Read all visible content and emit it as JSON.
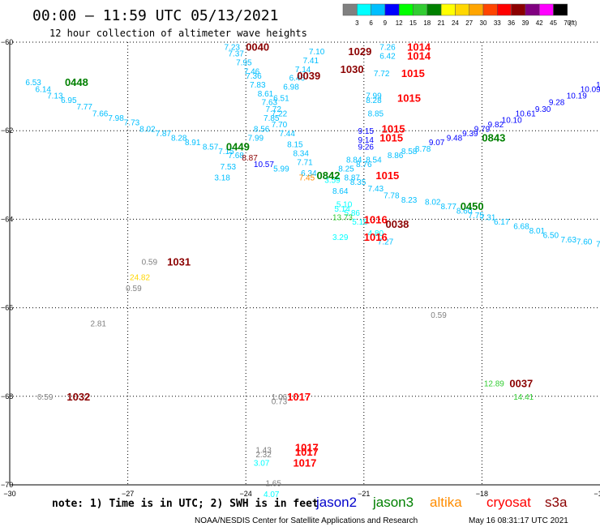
{
  "header": {
    "title": "00:00 – 11:59 UTC 05/13/2021",
    "subtitle": "12 hour collection of altimeter wave heights"
  },
  "colorbar": {
    "labels": [
      "3",
      "6",
      "9",
      "12",
      "15",
      "18",
      "21",
      "24",
      "27",
      "30",
      "33",
      "36",
      "39",
      "42",
      "45",
      "70",
      "(ft)"
    ],
    "colors": [
      "#808080",
      "#00ffff",
      "#00bfff",
      "#0000ff",
      "#00ff00",
      "#32cd32",
      "#008000",
      "#ffff00",
      "#ffd700",
      "#ffa500",
      "#ff4500",
      "#ff0000",
      "#8b0000",
      "#800080",
      "#ff00ff",
      "#000000"
    ]
  },
  "footer": {
    "note": "note: 1) Time is in UTC; 2) SWH is in feet",
    "credit": "NOAA/NESDIS Center for Satellite Applications and Research",
    "timestamp": "May 16 08:31:17 UTC 2021"
  },
  "legend": [
    {
      "name": "jason2",
      "color": "#0000cc"
    },
    {
      "name": "jason3",
      "color": "#008000"
    },
    {
      "name": "altika",
      "color": "#ff8c00"
    },
    {
      "name": "cryosat",
      "color": "#ff0000"
    },
    {
      "name": "s3a",
      "color": "#8b0000"
    }
  ],
  "chart_data": {
    "type": "scatter",
    "xlim": [
      -30,
      -15
    ],
    "ylim": [
      -70,
      -60
    ],
    "x_ticks": [
      -30,
      -27,
      -24,
      -21,
      -18,
      -15
    ],
    "y_ticks": [
      -60,
      -62,
      -64,
      -66,
      -68,
      -70
    ],
    "grid": true,
    "time_labels": [
      {
        "text": "0448",
        "lon": -28.6,
        "lat": -60.9,
        "color": "#008000"
      },
      {
        "text": "0449",
        "lon": -24.5,
        "lat": -62.35,
        "color": "#008000"
      },
      {
        "text": "0040",
        "lon": -24.0,
        "lat": -60.1,
        "color": "#8b0000"
      },
      {
        "text": "0039",
        "lon": -22.7,
        "lat": -60.75,
        "color": "#8b0000"
      },
      {
        "text": "1029",
        "lon": -21.4,
        "lat": -60.2,
        "color": "#8b0000"
      },
      {
        "text": "1030",
        "lon": -21.6,
        "lat": -60.6,
        "color": "#8b0000"
      },
      {
        "text": "1014",
        "lon": -19.9,
        "lat": -60.1,
        "color": "#ff0000"
      },
      {
        "text": "1014",
        "lon": -19.9,
        "lat": -60.3,
        "color": "#ff0000"
      },
      {
        "text": "1015",
        "lon": -20.05,
        "lat": -60.7,
        "color": "#ff0000"
      },
      {
        "text": "1015",
        "lon": -20.15,
        "lat": -61.25,
        "color": "#ff0000"
      },
      {
        "text": "1015",
        "lon": -20.55,
        "lat": -61.95,
        "color": "#ff0000"
      },
      {
        "text": "1015",
        "lon": -20.6,
        "lat": -62.15,
        "color": "#ff0000"
      },
      {
        "text": "0843",
        "lon": -18.0,
        "lat": -62.15,
        "color": "#008000"
      },
      {
        "text": "0842",
        "lon": -22.2,
        "lat": -63.0,
        "color": "#008000"
      },
      {
        "text": "1015",
        "lon": -20.7,
        "lat": -63.0,
        "color": "#ff0000"
      },
      {
        "text": "0450",
        "lon": -18.55,
        "lat": -63.7,
        "color": "#008000"
      },
      {
        "text": "1016",
        "lon": -21.0,
        "lat": -64.0,
        "color": "#ff0000"
      },
      {
        "text": "0038",
        "lon": -20.45,
        "lat": -64.1,
        "color": "#8b0000"
      },
      {
        "text": "1016",
        "lon": -21.0,
        "lat": -64.4,
        "color": "#ff0000"
      },
      {
        "text": "1031",
        "lon": -26.0,
        "lat": -64.95,
        "color": "#8b0000"
      },
      {
        "text": "1032",
        "lon": -28.55,
        "lat": -68.0,
        "color": "#8b0000"
      },
      {
        "text": "0037",
        "lon": -17.3,
        "lat": -67.7,
        "color": "#8b0000"
      },
      {
        "text": "1017",
        "lon": -22.95,
        "lat": -68.0,
        "color": "#ff0000"
      },
      {
        "text": "1017",
        "lon": -22.75,
        "lat": -69.15,
        "color": "#ff0000"
      },
      {
        "text": "1017",
        "lon": -22.75,
        "lat": -69.25,
        "color": "#ff0000"
      },
      {
        "text": "1017",
        "lon": -22.8,
        "lat": -69.5,
        "color": "#ff0000"
      }
    ],
    "swh_values": [
      {
        "text": "6.53",
        "lon": -29.6,
        "lat": -60.9,
        "color": "#00bfff"
      },
      {
        "text": "6.14",
        "lon": -29.35,
        "lat": -61.05,
        "color": "#00bfff"
      },
      {
        "text": "7.13",
        "lon": -29.05,
        "lat": -61.2,
        "color": "#00bfff"
      },
      {
        "text": "6.95",
        "lon": -28.7,
        "lat": -61.3,
        "color": "#00bfff"
      },
      {
        "text": "7.77",
        "lon": -28.3,
        "lat": -61.45,
        "color": "#00bfff"
      },
      {
        "text": "7.66",
        "lon": -27.9,
        "lat": -61.6,
        "color": "#00bfff"
      },
      {
        "text": "7.98",
        "lon": -27.5,
        "lat": -61.7,
        "color": "#00bfff"
      },
      {
        "text": "7.73",
        "lon": -27.1,
        "lat": -61.8,
        "color": "#00bfff"
      },
      {
        "text": "8.02",
        "lon": -26.7,
        "lat": -61.95,
        "color": "#00bfff"
      },
      {
        "text": "7.87",
        "lon": -26.3,
        "lat": -62.05,
        "color": "#00bfff"
      },
      {
        "text": "8.28",
        "lon": -25.9,
        "lat": -62.15,
        "color": "#00bfff"
      },
      {
        "text": "8.91",
        "lon": -25.55,
        "lat": -62.25,
        "color": "#00bfff"
      },
      {
        "text": "8.57",
        "lon": -25.1,
        "lat": -62.35,
        "color": "#00bfff"
      },
      {
        "text": "7.15",
        "lon": -24.7,
        "lat": -62.45,
        "color": "#00bfff"
      },
      {
        "text": "7.68",
        "lon": -24.45,
        "lat": -62.55,
        "color": "#00bfff"
      },
      {
        "text": "7.53",
        "lon": -24.65,
        "lat": -62.8,
        "color": "#00bfff"
      },
      {
        "text": "3.18",
        "lon": -24.8,
        "lat": -63.05,
        "color": "#00bfff"
      },
      {
        "text": "7.23",
        "lon": -24.55,
        "lat": -60.1,
        "color": "#00bfff"
      },
      {
        "text": "7.37",
        "lon": -24.45,
        "lat": -60.25,
        "color": "#00bfff"
      },
      {
        "text": "7.95",
        "lon": -24.25,
        "lat": -60.45,
        "color": "#00bfff"
      },
      {
        "text": "7.46",
        "lon": -24.05,
        "lat": -60.65,
        "color": "#00bfff"
      },
      {
        "text": "7.36",
        "lon": -24.0,
        "lat": -60.75,
        "color": "#00bfff"
      },
      {
        "text": "7.83",
        "lon": -23.9,
        "lat": -60.95,
        "color": "#00bfff"
      },
      {
        "text": "8.61",
        "lon": -23.7,
        "lat": -61.15,
        "color": "#00bfff"
      },
      {
        "text": "7.63",
        "lon": -23.6,
        "lat": -61.35,
        "color": "#00bfff"
      },
      {
        "text": "7.72",
        "lon": -23.5,
        "lat": -61.5,
        "color": "#00bfff"
      },
      {
        "text": "7.85",
        "lon": -23.55,
        "lat": -61.7,
        "color": "#00bfff"
      },
      {
        "text": "8.56",
        "lon": -23.8,
        "lat": -61.95,
        "color": "#00bfff"
      },
      {
        "text": "7.99",
        "lon": -23.95,
        "lat": -62.15,
        "color": "#00bfff"
      },
      {
        "text": "7.10",
        "lon": -22.4,
        "lat": -60.2,
        "color": "#00bfff"
      },
      {
        "text": "7.41",
        "lon": -22.55,
        "lat": -60.4,
        "color": "#00bfff"
      },
      {
        "text": "7.14",
        "lon": -22.75,
        "lat": -60.6,
        "color": "#00bfff"
      },
      {
        "text": "6.46",
        "lon": -22.9,
        "lat": -60.8,
        "color": "#00bfff"
      },
      {
        "text": "6.98",
        "lon": -23.05,
        "lat": -61.0,
        "color": "#00bfff"
      },
      {
        "text": "6.51",
        "lon": -23.3,
        "lat": -61.25,
        "color": "#00bfff"
      },
      {
        "text": "7.22",
        "lon": -23.35,
        "lat": -61.6,
        "color": "#00bfff"
      },
      {
        "text": "7.70",
        "lon": -23.35,
        "lat": -61.85,
        "color": "#00bfff"
      },
      {
        "text": "7.44",
        "lon": -23.15,
        "lat": -62.05,
        "color": "#00bfff"
      },
      {
        "text": "8.15",
        "lon": -22.95,
        "lat": -62.3,
        "color": "#00bfff"
      },
      {
        "text": "8.34",
        "lon": -22.8,
        "lat": -62.5,
        "color": "#00bfff"
      },
      {
        "text": "7.71",
        "lon": -22.7,
        "lat": -62.7,
        "color": "#00bfff"
      },
      {
        "text": "5.99",
        "lon": -23.3,
        "lat": -62.85,
        "color": "#00bfff"
      },
      {
        "text": "6.34",
        "lon": -22.6,
        "lat": -62.95,
        "color": "#00bfff"
      },
      {
        "text": "7.26",
        "lon": -20.6,
        "lat": -60.1,
        "color": "#00bfff"
      },
      {
        "text": "6.42",
        "lon": -20.6,
        "lat": -60.3,
        "color": "#00bfff"
      },
      {
        "text": "7.72",
        "lon": -20.75,
        "lat": -60.7,
        "color": "#00bfff"
      },
      {
        "text": "7.99",
        "lon": -20.95,
        "lat": -61.2,
        "color": "#00bfff"
      },
      {
        "text": "8.28",
        "lon": -20.95,
        "lat": -61.3,
        "color": "#00bfff"
      },
      {
        "text": "8.85",
        "lon": -20.9,
        "lat": -61.6,
        "color": "#00bfff"
      },
      {
        "text": "8.86",
        "lon": -20.4,
        "lat": -62.55,
        "color": "#00bfff"
      },
      {
        "text": "8.58",
        "lon": -20.05,
        "lat": -62.45,
        "color": "#00bfff"
      },
      {
        "text": "8.78",
        "lon": -19.7,
        "lat": -62.4,
        "color": "#00bfff"
      },
      {
        "text": "8.54",
        "lon": -20.95,
        "lat": -62.65,
        "color": "#00bfff"
      },
      {
        "text": "8.84",
        "lon": -21.45,
        "lat": -62.65,
        "color": "#00bfff"
      },
      {
        "text": "8.76",
        "lon": -21.2,
        "lat": -62.75,
        "color": "#00bfff"
      },
      {
        "text": "8.25",
        "lon": -21.65,
        "lat": -62.85,
        "color": "#00bfff"
      },
      {
        "text": "8.87",
        "lon": -21.5,
        "lat": -63.05,
        "color": "#00bfff"
      },
      {
        "text": "8.35",
        "lon": -21.35,
        "lat": -63.15,
        "color": "#00bfff"
      },
      {
        "text": "8.64",
        "lon": -21.8,
        "lat": -63.35,
        "color": "#00bfff"
      },
      {
        "text": "7.43",
        "lon": -20.9,
        "lat": -63.3,
        "color": "#00bfff"
      },
      {
        "text": "7.78",
        "lon": -20.5,
        "lat": -63.45,
        "color": "#00bfff"
      },
      {
        "text": "8.23",
        "lon": -20.05,
        "lat": -63.55,
        "color": "#00bfff"
      },
      {
        "text": "8.02",
        "lon": -19.45,
        "lat": -63.6,
        "color": "#00bfff"
      },
      {
        "text": "8.77",
        "lon": -19.05,
        "lat": -63.7,
        "color": "#00bfff"
      },
      {
        "text": "8.60",
        "lon": -18.65,
        "lat": -63.8,
        "color": "#00bfff"
      },
      {
        "text": "7.75",
        "lon": -18.35,
        "lat": -63.9,
        "color": "#00bfff"
      },
      {
        "text": "7.31",
        "lon": -18.05,
        "lat": -63.95,
        "color": "#00bfff"
      },
      {
        "text": "6.17",
        "lon": -17.7,
        "lat": -64.05,
        "color": "#00bfff"
      },
      {
        "text": "6.68",
        "lon": -17.2,
        "lat": -64.15,
        "color": "#00bfff"
      },
      {
        "text": "8.01",
        "lon": -16.8,
        "lat": -64.25,
        "color": "#00bfff"
      },
      {
        "text": "6.50",
        "lon": -16.45,
        "lat": -64.35,
        "color": "#00bfff"
      },
      {
        "text": "7.63",
        "lon": -16.0,
        "lat": -64.45,
        "color": "#00bfff"
      },
      {
        "text": "7.60",
        "lon": -15.6,
        "lat": -64.5,
        "color": "#00bfff"
      },
      {
        "text": "7.5",
        "lon": -15.1,
        "lat": -64.55,
        "color": "#00bfff"
      },
      {
        "text": "5.10",
        "lon": -21.7,
        "lat": -63.65,
        "color": "#00ffff"
      },
      {
        "text": "5.14",
        "lon": -21.75,
        "lat": -63.75,
        "color": "#00ffff"
      },
      {
        "text": "5.86",
        "lon": -21.5,
        "lat": -63.85,
        "color": "#00ffff"
      },
      {
        "text": "5.18",
        "lon": -21.3,
        "lat": -64.05,
        "color": "#00ffff"
      },
      {
        "text": "4.80",
        "lon": -20.9,
        "lat": -64.3,
        "color": "#00ffff"
      },
      {
        "text": "3.29",
        "lon": -21.8,
        "lat": -64.4,
        "color": "#00ffff"
      },
      {
        "text": "7.27",
        "lon": -20.65,
        "lat": -64.5,
        "color": "#00bfff"
      },
      {
        "text": "9.15",
        "lon": -21.15,
        "lat": -62.0,
        "color": "#0000ff"
      },
      {
        "text": "9.14",
        "lon": -21.15,
        "lat": -62.2,
        "color": "#0000ff"
      },
      {
        "text": "9.26",
        "lon": -21.15,
        "lat": -62.35,
        "color": "#0000ff"
      },
      {
        "text": "9.07",
        "lon": -19.35,
        "lat": -62.25,
        "color": "#0000ff"
      },
      {
        "text": "9.48",
        "lon": -18.9,
        "lat": -62.15,
        "color": "#0000ff"
      },
      {
        "text": "9.39",
        "lon": -18.5,
        "lat": -62.05,
        "color": "#0000ff"
      },
      {
        "text": "9.79",
        "lon": -18.2,
        "lat": -61.95,
        "color": "#0000ff"
      },
      {
        "text": "9.82",
        "lon": -17.85,
        "lat": -61.85,
        "color": "#0000ff"
      },
      {
        "text": "10.10",
        "lon": -17.5,
        "lat": -61.75,
        "color": "#0000ff"
      },
      {
        "text": "10.61",
        "lon": -17.15,
        "lat": -61.6,
        "color": "#0000ff"
      },
      {
        "text": "9.30",
        "lon": -16.65,
        "lat": -61.5,
        "color": "#0000ff"
      },
      {
        "text": "9.28",
        "lon": -16.3,
        "lat": -61.35,
        "color": "#0000ff"
      },
      {
        "text": "10.19",
        "lon": -15.85,
        "lat": -61.2,
        "color": "#0000ff"
      },
      {
        "text": "10.09",
        "lon": -15.5,
        "lat": -61.05,
        "color": "#0000ff"
      },
      {
        "text": "10",
        "lon": -15.1,
        "lat": -60.95,
        "color": "#0000ff"
      },
      {
        "text": "10.57",
        "lon": -23.8,
        "lat": -62.75,
        "color": "#0000ff"
      },
      {
        "text": "8.87",
        "lon": -24.1,
        "lat": -62.6,
        "color": "#8b0000"
      },
      {
        "text": "7.45",
        "lon": -22.65,
        "lat": -63.05,
        "color": "#ff8c00"
      },
      {
        "text": "13.73",
        "lon": -21.8,
        "lat": -63.95,
        "color": "#32cd32"
      },
      {
        "text": "3.59",
        "lon": -22.0,
        "lat": -63.1,
        "color": "#00ffff"
      },
      {
        "text": "0.59",
        "lon": -26.65,
        "lat": -64.95,
        "color": "#808080"
      },
      {
        "text": "24.82",
        "lon": -26.95,
        "lat": -65.3,
        "color": "#ffd700"
      },
      {
        "text": "0.59",
        "lon": -27.05,
        "lat": -65.55,
        "color": "#808080"
      },
      {
        "text": "2.81",
        "lon": -27.95,
        "lat": -66.35,
        "color": "#808080"
      },
      {
        "text": "0.59",
        "lon": -29.3,
        "lat": -68.0,
        "color": "#808080"
      },
      {
        "text": "0.59",
        "lon": -19.3,
        "lat": -66.15,
        "color": "#808080"
      },
      {
        "text": "12.89",
        "lon": -17.95,
        "lat": -67.7,
        "color": "#32cd32"
      },
      {
        "text": "14.41",
        "lon": -17.2,
        "lat": -68.0,
        "color": "#32cd32"
      },
      {
        "text": "1.06",
        "lon": -23.35,
        "lat": -68.0,
        "color": "#808080"
      },
      {
        "text": "0.73",
        "lon": -23.35,
        "lat": -68.1,
        "color": "#808080"
      },
      {
        "text": "1.43",
        "lon": -23.75,
        "lat": -69.2,
        "color": "#808080"
      },
      {
        "text": "2.32",
        "lon": -23.75,
        "lat": -69.3,
        "color": "#808080"
      },
      {
        "text": "3.07",
        "lon": -23.8,
        "lat": -69.5,
        "color": "#00ffff"
      },
      {
        "text": "1.65",
        "lon": -23.5,
        "lat": -69.95,
        "color": "#808080"
      },
      {
        "text": "4.07",
        "lon": -23.55,
        "lat": -70.2,
        "color": "#00ffff"
      }
    ]
  }
}
